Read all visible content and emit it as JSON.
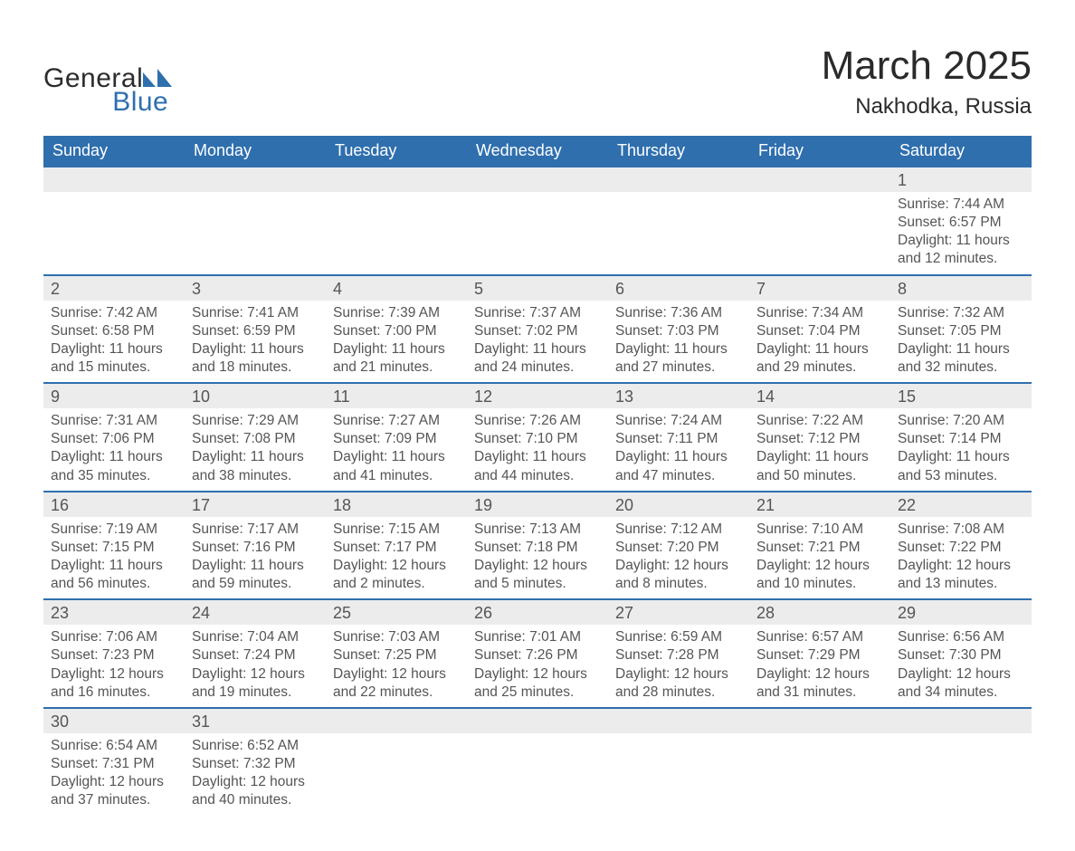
{
  "brand": {
    "word1": "General",
    "word2": "Blue",
    "color_primary": "#2f6fad",
    "logo_fill": "#2f6fad"
  },
  "title": {
    "month": "March 2025",
    "location": "Nakhodka, Russia"
  },
  "colors": {
    "header_bg": "#2f6fad",
    "header_text": "#ffffff",
    "row_alt_bg": "#ececec",
    "border": "#2f6fad",
    "body_text": "#555555",
    "page_bg": "#ffffff"
  },
  "typography": {
    "title_fontsize": 44,
    "location_fontsize": 24,
    "weekday_fontsize": 18,
    "daynum_fontsize": 18,
    "body_fontsize": 15.5,
    "font_family": "Arial"
  },
  "weekdays": [
    "Sunday",
    "Monday",
    "Tuesday",
    "Wednesday",
    "Thursday",
    "Friday",
    "Saturday"
  ],
  "weeks": [
    [
      null,
      null,
      null,
      null,
      null,
      null,
      {
        "n": "1",
        "sunrise": "Sunrise: 7:44 AM",
        "sunset": "Sunset: 6:57 PM",
        "daylight1": "Daylight: 11 hours",
        "daylight2": "and 12 minutes."
      }
    ],
    [
      {
        "n": "2",
        "sunrise": "Sunrise: 7:42 AM",
        "sunset": "Sunset: 6:58 PM",
        "daylight1": "Daylight: 11 hours",
        "daylight2": "and 15 minutes."
      },
      {
        "n": "3",
        "sunrise": "Sunrise: 7:41 AM",
        "sunset": "Sunset: 6:59 PM",
        "daylight1": "Daylight: 11 hours",
        "daylight2": "and 18 minutes."
      },
      {
        "n": "4",
        "sunrise": "Sunrise: 7:39 AM",
        "sunset": "Sunset: 7:00 PM",
        "daylight1": "Daylight: 11 hours",
        "daylight2": "and 21 minutes."
      },
      {
        "n": "5",
        "sunrise": "Sunrise: 7:37 AM",
        "sunset": "Sunset: 7:02 PM",
        "daylight1": "Daylight: 11 hours",
        "daylight2": "and 24 minutes."
      },
      {
        "n": "6",
        "sunrise": "Sunrise: 7:36 AM",
        "sunset": "Sunset: 7:03 PM",
        "daylight1": "Daylight: 11 hours",
        "daylight2": "and 27 minutes."
      },
      {
        "n": "7",
        "sunrise": "Sunrise: 7:34 AM",
        "sunset": "Sunset: 7:04 PM",
        "daylight1": "Daylight: 11 hours",
        "daylight2": "and 29 minutes."
      },
      {
        "n": "8",
        "sunrise": "Sunrise: 7:32 AM",
        "sunset": "Sunset: 7:05 PM",
        "daylight1": "Daylight: 11 hours",
        "daylight2": "and 32 minutes."
      }
    ],
    [
      {
        "n": "9",
        "sunrise": "Sunrise: 7:31 AM",
        "sunset": "Sunset: 7:06 PM",
        "daylight1": "Daylight: 11 hours",
        "daylight2": "and 35 minutes."
      },
      {
        "n": "10",
        "sunrise": "Sunrise: 7:29 AM",
        "sunset": "Sunset: 7:08 PM",
        "daylight1": "Daylight: 11 hours",
        "daylight2": "and 38 minutes."
      },
      {
        "n": "11",
        "sunrise": "Sunrise: 7:27 AM",
        "sunset": "Sunset: 7:09 PM",
        "daylight1": "Daylight: 11 hours",
        "daylight2": "and 41 minutes."
      },
      {
        "n": "12",
        "sunrise": "Sunrise: 7:26 AM",
        "sunset": "Sunset: 7:10 PM",
        "daylight1": "Daylight: 11 hours",
        "daylight2": "and 44 minutes."
      },
      {
        "n": "13",
        "sunrise": "Sunrise: 7:24 AM",
        "sunset": "Sunset: 7:11 PM",
        "daylight1": "Daylight: 11 hours",
        "daylight2": "and 47 minutes."
      },
      {
        "n": "14",
        "sunrise": "Sunrise: 7:22 AM",
        "sunset": "Sunset: 7:12 PM",
        "daylight1": "Daylight: 11 hours",
        "daylight2": "and 50 minutes."
      },
      {
        "n": "15",
        "sunrise": "Sunrise: 7:20 AM",
        "sunset": "Sunset: 7:14 PM",
        "daylight1": "Daylight: 11 hours",
        "daylight2": "and 53 minutes."
      }
    ],
    [
      {
        "n": "16",
        "sunrise": "Sunrise: 7:19 AM",
        "sunset": "Sunset: 7:15 PM",
        "daylight1": "Daylight: 11 hours",
        "daylight2": "and 56 minutes."
      },
      {
        "n": "17",
        "sunrise": "Sunrise: 7:17 AM",
        "sunset": "Sunset: 7:16 PM",
        "daylight1": "Daylight: 11 hours",
        "daylight2": "and 59 minutes."
      },
      {
        "n": "18",
        "sunrise": "Sunrise: 7:15 AM",
        "sunset": "Sunset: 7:17 PM",
        "daylight1": "Daylight: 12 hours",
        "daylight2": "and 2 minutes."
      },
      {
        "n": "19",
        "sunrise": "Sunrise: 7:13 AM",
        "sunset": "Sunset: 7:18 PM",
        "daylight1": "Daylight: 12 hours",
        "daylight2": "and 5 minutes."
      },
      {
        "n": "20",
        "sunrise": "Sunrise: 7:12 AM",
        "sunset": "Sunset: 7:20 PM",
        "daylight1": "Daylight: 12 hours",
        "daylight2": "and 8 minutes."
      },
      {
        "n": "21",
        "sunrise": "Sunrise: 7:10 AM",
        "sunset": "Sunset: 7:21 PM",
        "daylight1": "Daylight: 12 hours",
        "daylight2": "and 10 minutes."
      },
      {
        "n": "22",
        "sunrise": "Sunrise: 7:08 AM",
        "sunset": "Sunset: 7:22 PM",
        "daylight1": "Daylight: 12 hours",
        "daylight2": "and 13 minutes."
      }
    ],
    [
      {
        "n": "23",
        "sunrise": "Sunrise: 7:06 AM",
        "sunset": "Sunset: 7:23 PM",
        "daylight1": "Daylight: 12 hours",
        "daylight2": "and 16 minutes."
      },
      {
        "n": "24",
        "sunrise": "Sunrise: 7:04 AM",
        "sunset": "Sunset: 7:24 PM",
        "daylight1": "Daylight: 12 hours",
        "daylight2": "and 19 minutes."
      },
      {
        "n": "25",
        "sunrise": "Sunrise: 7:03 AM",
        "sunset": "Sunset: 7:25 PM",
        "daylight1": "Daylight: 12 hours",
        "daylight2": "and 22 minutes."
      },
      {
        "n": "26",
        "sunrise": "Sunrise: 7:01 AM",
        "sunset": "Sunset: 7:26 PM",
        "daylight1": "Daylight: 12 hours",
        "daylight2": "and 25 minutes."
      },
      {
        "n": "27",
        "sunrise": "Sunrise: 6:59 AM",
        "sunset": "Sunset: 7:28 PM",
        "daylight1": "Daylight: 12 hours",
        "daylight2": "and 28 minutes."
      },
      {
        "n": "28",
        "sunrise": "Sunrise: 6:57 AM",
        "sunset": "Sunset: 7:29 PM",
        "daylight1": "Daylight: 12 hours",
        "daylight2": "and 31 minutes."
      },
      {
        "n": "29",
        "sunrise": "Sunrise: 6:56 AM",
        "sunset": "Sunset: 7:30 PM",
        "daylight1": "Daylight: 12 hours",
        "daylight2": "and 34 minutes."
      }
    ],
    [
      {
        "n": "30",
        "sunrise": "Sunrise: 6:54 AM",
        "sunset": "Sunset: 7:31 PM",
        "daylight1": "Daylight: 12 hours",
        "daylight2": "and 37 minutes."
      },
      {
        "n": "31",
        "sunrise": "Sunrise: 6:52 AM",
        "sunset": "Sunset: 7:32 PM",
        "daylight1": "Daylight: 12 hours",
        "daylight2": "and 40 minutes."
      },
      null,
      null,
      null,
      null,
      null
    ]
  ]
}
